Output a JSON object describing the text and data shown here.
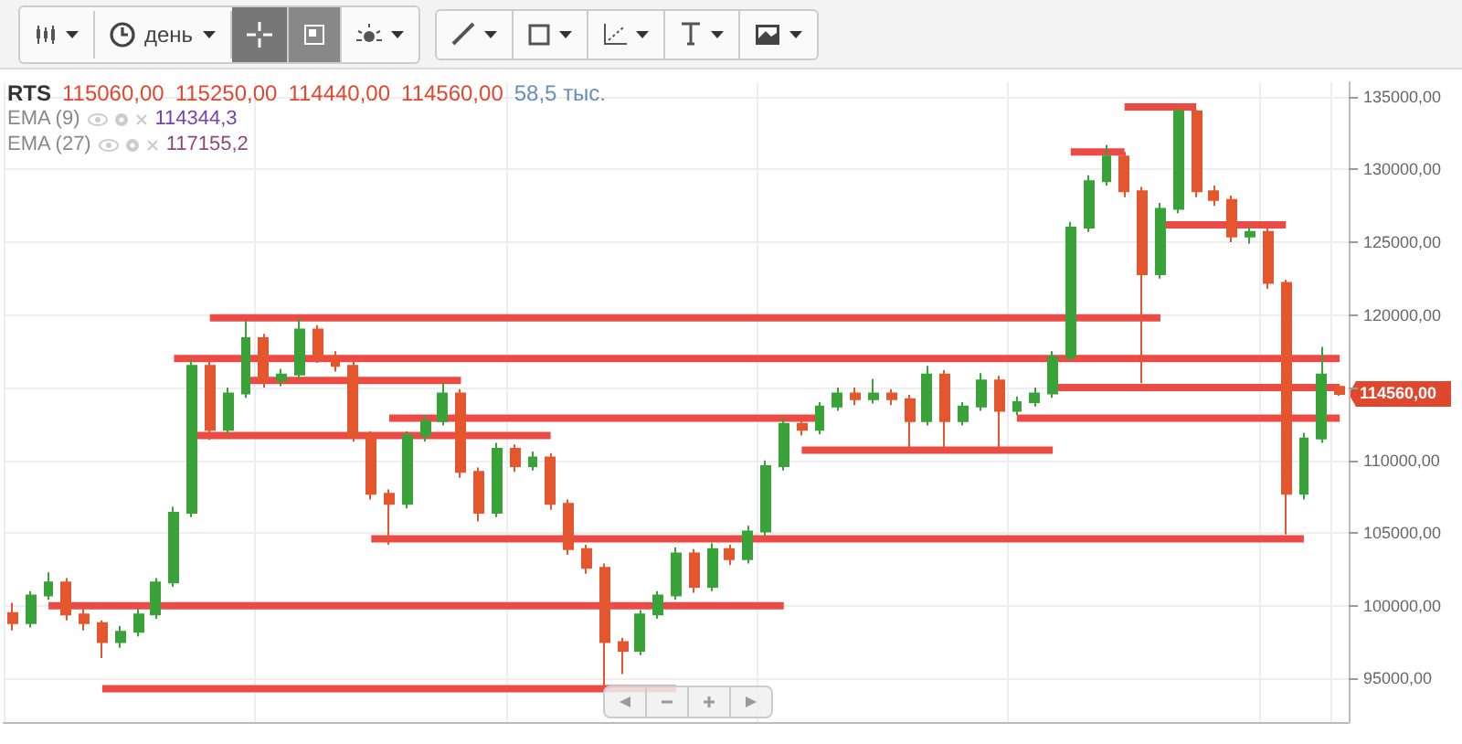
{
  "chart_data": {
    "type": "candlestick",
    "categories": [
      null,
      null,
      null,
      null,
      null,
      null,
      null,
      null,
      null,
      null,
      null,
      null,
      null,
      null,
      null,
      null,
      null,
      null,
      null,
      null,
      null,
      null,
      null,
      null,
      null,
      null,
      null,
      null,
      null,
      null,
      null,
      null,
      null,
      null,
      null,
      null,
      null,
      null,
      null,
      null,
      null,
      null,
      null,
      null,
      null,
      null,
      null,
      null,
      null,
      null,
      null,
      null,
      null,
      null,
      null,
      null,
      null,
      null,
      null,
      null,
      null,
      null,
      null,
      null,
      null,
      null,
      null,
      null,
      null,
      null,
      null,
      null,
      null,
      null,
      null
    ],
    "ohlc": [
      [
        99500,
        100200,
        98300,
        98800
      ],
      [
        98800,
        101000,
        98500,
        100700
      ],
      [
        100700,
        102300,
        100400,
        101600
      ],
      [
        101600,
        101900,
        99000,
        99400
      ],
      [
        99400,
        99800,
        98300,
        98800
      ],
      [
        98800,
        99000,
        96400,
        97500
      ],
      [
        97500,
        98600,
        97100,
        98200
      ],
      [
        98200,
        99800,
        97900,
        99400
      ],
      [
        99400,
        101900,
        99100,
        101600
      ],
      [
        101600,
        106800,
        101300,
        106400
      ],
      [
        106400,
        116900,
        106100,
        116500
      ],
      [
        116500,
        116800,
        111400,
        112100
      ],
      [
        112100,
        115000,
        111800,
        114600
      ],
      [
        114600,
        119600,
        114300,
        118400
      ],
      [
        118400,
        118700,
        115000,
        115500
      ],
      [
        115500,
        116300,
        115100,
        115900
      ],
      [
        115900,
        119800,
        115600,
        119000
      ],
      [
        119000,
        119300,
        116700,
        117100
      ],
      [
        117100,
        117500,
        116100,
        116500
      ],
      [
        116500,
        116800,
        111300,
        111700
      ],
      [
        111700,
        112000,
        107300,
        107700
      ],
      [
        107700,
        108000,
        104200,
        107000
      ],
      [
        107000,
        112000,
        106700,
        111700
      ],
      [
        111700,
        113100,
        111300,
        112700
      ],
      [
        112700,
        115300,
        112400,
        114600
      ],
      [
        114600,
        114900,
        108800,
        109200
      ],
      [
        109200,
        109500,
        105800,
        106400
      ],
      [
        106400,
        111200,
        106100,
        110800
      ],
      [
        110800,
        111100,
        109200,
        109600
      ],
      [
        109600,
        110600,
        109300,
        110200
      ],
      [
        110200,
        110500,
        106600,
        107000
      ],
      [
        107000,
        107300,
        103500,
        103900
      ],
      [
        103900,
        104200,
        102200,
        102600
      ],
      [
        102600,
        102900,
        94400,
        97500
      ],
      [
        97500,
        97800,
        95300,
        96900
      ],
      [
        96900,
        99700,
        96600,
        99400
      ],
      [
        99400,
        101000,
        99100,
        100700
      ],
      [
        100700,
        104000,
        100400,
        103600
      ],
      [
        103600,
        103900,
        100900,
        101300
      ],
      [
        101300,
        104300,
        101000,
        103900
      ],
      [
        103900,
        104200,
        102800,
        103200
      ],
      [
        103200,
        105500,
        102900,
        105100
      ],
      [
        105100,
        110000,
        104800,
        109600
      ],
      [
        109600,
        112900,
        109300,
        112500
      ],
      [
        112500,
        112800,
        111700,
        112100
      ],
      [
        112100,
        114000,
        111800,
        113700
      ],
      [
        113700,
        115000,
        113400,
        114600
      ],
      [
        114600,
        115000,
        113800,
        114200
      ],
      [
        114200,
        115600,
        113900,
        114600
      ],
      [
        114600,
        114900,
        113800,
        114200
      ],
      [
        114200,
        114500,
        110800,
        112700
      ],
      [
        112700,
        116500,
        112400,
        115900
      ],
      [
        115900,
        116200,
        110900,
        112700
      ],
      [
        112700,
        114000,
        112400,
        113700
      ],
      [
        113700,
        116000,
        113400,
        115500
      ],
      [
        115500,
        115800,
        110700,
        113400
      ],
      [
        113400,
        114400,
        113100,
        114000
      ],
      [
        114000,
        115000,
        113700,
        114600
      ],
      [
        114600,
        117500,
        114300,
        117100
      ],
      [
        117100,
        126400,
        116800,
        126000
      ],
      [
        126000,
        129600,
        125700,
        129200
      ],
      [
        129200,
        131700,
        128900,
        130900
      ],
      [
        130900,
        131200,
        128100,
        128500
      ],
      [
        128500,
        128800,
        115300,
        122800
      ],
      [
        122800,
        127700,
        122500,
        127300
      ],
      [
        127300,
        134200,
        127000,
        134000
      ],
      [
        134000,
        134100,
        128100,
        128500
      ],
      [
        128500,
        128900,
        127500,
        127900
      ],
      [
        127900,
        128200,
        125000,
        125400
      ],
      [
        125400,
        126100,
        124900,
        125700
      ],
      [
        125700,
        126000,
        121800,
        122200
      ],
      [
        122200,
        122400,
        104900,
        107700
      ],
      [
        107700,
        111900,
        107300,
        111500
      ],
      [
        111500,
        117800,
        111200,
        115900
      ],
      [
        115060,
        115250,
        114440,
        114560
      ]
    ],
    "colors": [
      "#e4572e",
      "#39a33a",
      "#39a33a",
      "#e4572e",
      "#e4572e",
      "#e4572e",
      "#39a33a",
      "#39a33a",
      "#39a33a",
      "#39a33a",
      "#39a33a",
      "#e4572e",
      "#39a33a",
      "#39a33a",
      "#e4572e",
      "#39a33a",
      "#39a33a",
      "#e4572e",
      "#e4572e",
      "#e4572e",
      "#e4572e",
      "#e4572e",
      "#39a33a",
      "#39a33a",
      "#39a33a",
      "#e4572e",
      "#e4572e",
      "#39a33a",
      "#e4572e",
      "#39a33a",
      "#e4572e",
      "#e4572e",
      "#e4572e",
      "#e4572e",
      "#e4572e",
      "#39a33a",
      "#39a33a",
      "#39a33a",
      "#e4572e",
      "#39a33a",
      "#e4572e",
      "#39a33a",
      "#39a33a",
      "#39a33a",
      "#e4572e",
      "#39a33a",
      "#39a33a",
      "#e4572e",
      "#39a33a",
      "#e4572e",
      "#e4572e",
      "#39a33a",
      "#e4572e",
      "#39a33a",
      "#39a33a",
      "#e4572e",
      "#39a33a",
      "#39a33a",
      "#39a33a",
      "#39a33a",
      "#39a33a",
      "#39a33a",
      "#e4572e",
      "#e4572e",
      "#39a33a",
      "#39a33a",
      "#e4572e",
      "#e4572e",
      "#e4572e",
      "#39a33a",
      "#e4572e",
      "#e4572e",
      "#39a33a",
      "#39a33a",
      "#e4572e"
    ],
    "series": [
      {
        "type": "line",
        "color": "#ec4a45",
        "values": [
          null,
          null,
          null,
          null,
          null,
          null,
          null,
          null,
          null,
          null,
          null,
          119800,
          119800,
          119800,
          119800,
          119800,
          119800,
          119800,
          119800,
          119800,
          119800,
          119800,
          119800,
          119800,
          119800,
          119800,
          119800,
          119800,
          119800,
          119800,
          119800,
          119800,
          119800,
          119800,
          119800,
          119800,
          119800,
          119800,
          119800,
          119800,
          119800,
          119800,
          119800,
          119800,
          119800,
          119800,
          119800,
          119800,
          119800,
          119800,
          119800,
          119800,
          119800,
          119800,
          119800,
          119800,
          119800,
          119800,
          119800,
          119800,
          119800,
          119800,
          119800,
          119800,
          119800,
          null,
          null,
          null,
          null,
          null,
          null,
          null,
          null,
          null,
          null
        ]
      },
      {
        "type": "line",
        "color": "#ec4a45",
        "values": [
          null,
          null,
          null,
          null,
          null,
          null,
          null,
          null,
          null,
          117000,
          117000,
          117000,
          117000,
          117000,
          117000,
          117000,
          117000,
          117000,
          117000,
          117000,
          117000,
          117000,
          117000,
          117000,
          117000,
          117000,
          117000,
          117000,
          117000,
          117000,
          117000,
          117000,
          117000,
          117000,
          117000,
          117000,
          117000,
          117000,
          117000,
          117000,
          117000,
          117000,
          117000,
          117000,
          117000,
          117000,
          117000,
          117000,
          117000,
          117000,
          117000,
          117000,
          117000,
          117000,
          117000,
          117000,
          117000,
          117000,
          117000,
          117000,
          117000,
          117000,
          117000,
          117000,
          117000,
          117000,
          117000,
          117000,
          117000,
          117000,
          117000,
          117000,
          117000,
          117000,
          117000
        ]
      },
      {
        "type": "line",
        "color": "#ec4a45",
        "values": [
          null,
          null,
          null,
          null,
          null,
          null,
          null,
          null,
          null,
          null,
          null,
          null,
          null,
          115500,
          115500,
          115500,
          115500,
          115500,
          115500,
          115500,
          115500,
          115500,
          115500,
          115500,
          115500,
          115500,
          null,
          null,
          null,
          null,
          null,
          null,
          null,
          null,
          null,
          null,
          null,
          null,
          null,
          null,
          null,
          null,
          null,
          null,
          null,
          null,
          null,
          null,
          null,
          null,
          null,
          null,
          null,
          null,
          null,
          null,
          null,
          null,
          null,
          null,
          null,
          null,
          null,
          null,
          null,
          null,
          null,
          null,
          null,
          null,
          null,
          null,
          null,
          null,
          null
        ]
      },
      {
        "type": "line",
        "color": "#ec4a45",
        "values": [
          null,
          null,
          null,
          null,
          null,
          null,
          null,
          null,
          null,
          null,
          null,
          null,
          null,
          null,
          null,
          null,
          null,
          null,
          null,
          null,
          null,
          null,
          null,
          null,
          null,
          null,
          null,
          null,
          null,
          null,
          null,
          null,
          null,
          null,
          null,
          null,
          null,
          null,
          null,
          null,
          null,
          null,
          null,
          null,
          null,
          null,
          null,
          null,
          null,
          null,
          null,
          null,
          null,
          null,
          null,
          null,
          null,
          null,
          115000,
          115000,
          115000,
          115000,
          115000,
          115000,
          115000,
          115000,
          115000,
          115000,
          115000,
          115000,
          115000,
          115000,
          115000,
          115000,
          115000
        ]
      },
      {
        "type": "line",
        "color": "#ec4a45",
        "values": [
          null,
          null,
          null,
          null,
          null,
          null,
          null,
          null,
          null,
          null,
          null,
          null,
          null,
          null,
          null,
          null,
          null,
          null,
          null,
          null,
          null,
          112900,
          112900,
          112900,
          112900,
          112900,
          112900,
          112900,
          112900,
          112900,
          112900,
          112900,
          112900,
          112900,
          112900,
          112900,
          112900,
          112900,
          112900,
          112900,
          112900,
          112900,
          112900,
          112900,
          112900,
          112900,
          null,
          null,
          null,
          null,
          null,
          null,
          null,
          null,
          null,
          null,
          null,
          null,
          null,
          null,
          null,
          null,
          null,
          null,
          null,
          null,
          null,
          null,
          null,
          null,
          null,
          null,
          null,
          null,
          null
        ]
      },
      {
        "type": "line",
        "color": "#ec4a45",
        "values": [
          null,
          null,
          null,
          null,
          null,
          null,
          null,
          null,
          null,
          null,
          null,
          null,
          null,
          null,
          null,
          null,
          null,
          null,
          null,
          null,
          null,
          null,
          null,
          null,
          null,
          null,
          null,
          null,
          null,
          null,
          null,
          null,
          null,
          null,
          null,
          null,
          null,
          null,
          null,
          null,
          null,
          null,
          null,
          null,
          null,
          null,
          null,
          null,
          null,
          null,
          null,
          null,
          null,
          null,
          null,
          null,
          112900,
          112900,
          112900,
          112900,
          112900,
          112900,
          112900,
          112900,
          112900,
          112900,
          112900,
          112900,
          112900,
          112900,
          112900,
          112900,
          112900,
          112900,
          112900
        ]
      },
      {
        "type": "line",
        "color": "#ec4a45",
        "values": [
          null,
          null,
          null,
          null,
          null,
          null,
          null,
          null,
          null,
          null,
          111700,
          111700,
          111700,
          111700,
          111700,
          111700,
          111700,
          111700,
          111700,
          111700,
          111700,
          111700,
          111700,
          111700,
          111700,
          111700,
          111700,
          111700,
          111700,
          111700,
          111700,
          null,
          null,
          null,
          null,
          null,
          null,
          null,
          null,
          null,
          null,
          null,
          null,
          null,
          null,
          null,
          null,
          null,
          null,
          null,
          null,
          null,
          null,
          null,
          null,
          null,
          null,
          null,
          null,
          null,
          null,
          null,
          null,
          null,
          null,
          null,
          null,
          null,
          null,
          null,
          null,
          null,
          null,
          null,
          null
        ]
      },
      {
        "type": "line",
        "color": "#ec4a45",
        "values": [
          null,
          null,
          null,
          null,
          null,
          null,
          null,
          null,
          null,
          null,
          null,
          null,
          null,
          null,
          null,
          null,
          null,
          null,
          null,
          null,
          null,
          null,
          null,
          null,
          null,
          null,
          null,
          null,
          null,
          null,
          null,
          null,
          null,
          null,
          null,
          null,
          null,
          null,
          null,
          null,
          null,
          null,
          null,
          null,
          110700,
          110700,
          110700,
          110700,
          110700,
          110700,
          110700,
          110700,
          110700,
          110700,
          110700,
          110700,
          110700,
          110700,
          110700,
          null,
          null,
          null,
          null,
          null,
          null,
          null,
          null,
          null,
          null,
          null,
          null,
          null,
          null,
          null,
          null
        ]
      },
      {
        "type": "line",
        "color": "#ec4a45",
        "values": [
          null,
          null,
          null,
          null,
          null,
          null,
          null,
          null,
          null,
          null,
          null,
          null,
          null,
          null,
          null,
          null,
          null,
          null,
          null,
          null,
          104600,
          104600,
          104600,
          104600,
          104600,
          104600,
          104600,
          104600,
          104600,
          104600,
          104600,
          104600,
          104600,
          104600,
          104600,
          104600,
          104600,
          104600,
          104600,
          104600,
          104600,
          104600,
          104600,
          104600,
          104600,
          104600,
          104600,
          104600,
          104600,
          104600,
          104600,
          104600,
          104600,
          104600,
          104600,
          104600,
          104600,
          104600,
          104600,
          104600,
          104600,
          104600,
          104600,
          104600,
          104600,
          104600,
          104600,
          104600,
          104600,
          104600,
          104600,
          104600,
          104600,
          null,
          null
        ]
      },
      {
        "type": "line",
        "color": "#ec4a45",
        "values": [
          null,
          null,
          100000,
          100000,
          100000,
          100000,
          100000,
          100000,
          100000,
          100000,
          100000,
          100000,
          100000,
          100000,
          100000,
          100000,
          100000,
          100000,
          100000,
          100000,
          100000,
          100000,
          100000,
          100000,
          100000,
          100000,
          100000,
          100000,
          100000,
          100000,
          100000,
          100000,
          100000,
          100000,
          100000,
          100000,
          100000,
          100000,
          100000,
          100000,
          100000,
          100000,
          100000,
          100000,
          null,
          null,
          null,
          null,
          null,
          null,
          null,
          null,
          null,
          null,
          null,
          null,
          null,
          null,
          null,
          null,
          null,
          null,
          null,
          null,
          null,
          null,
          null,
          null,
          null,
          null,
          null,
          null,
          null,
          null,
          null
        ]
      },
      {
        "type": "line",
        "color": "#ec4a45",
        "values": [
          null,
          null,
          null,
          null,
          null,
          94300,
          94300,
          94300,
          94300,
          94300,
          94300,
          94300,
          94300,
          94300,
          94300,
          94300,
          94300,
          94300,
          94300,
          94300,
          94300,
          94300,
          94300,
          94300,
          94300,
          94300,
          94300,
          94300,
          94300,
          94300,
          94300,
          94300,
          94300,
          94300,
          94300,
          94300,
          94300,
          94300,
          null,
          null,
          null,
          null,
          null,
          null,
          null,
          null,
          null,
          null,
          null,
          null,
          null,
          null,
          null,
          null,
          null,
          null,
          null,
          null,
          null,
          null,
          null,
          null,
          null,
          null,
          null,
          null,
          null,
          null,
          null,
          null,
          null,
          null,
          null,
          null,
          null
        ]
      },
      {
        "type": "line",
        "color": "#ec4a45",
        "values": [
          null,
          null,
          null,
          null,
          null,
          null,
          null,
          null,
          null,
          null,
          null,
          null,
          null,
          null,
          null,
          null,
          null,
          null,
          null,
          null,
          null,
          null,
          null,
          null,
          null,
          null,
          null,
          null,
          null,
          null,
          null,
          null,
          null,
          null,
          null,
          null,
          null,
          null,
          null,
          null,
          null,
          null,
          null,
          null,
          null,
          null,
          null,
          null,
          null,
          null,
          null,
          null,
          null,
          null,
          null,
          null,
          null,
          null,
          null,
          null,
          null,
          null,
          134300,
          134300,
          134300,
          134300,
          134300,
          null,
          null,
          null,
          null,
          null,
          null,
          null,
          null
        ]
      },
      {
        "type": "line",
        "color": "#ec4a45",
        "values": [
          null,
          null,
          null,
          null,
          null,
          null,
          null,
          null,
          null,
          null,
          null,
          null,
          null,
          null,
          null,
          null,
          null,
          null,
          null,
          null,
          null,
          null,
          null,
          null,
          null,
          null,
          null,
          null,
          null,
          null,
          null,
          null,
          null,
          null,
          null,
          null,
          null,
          null,
          null,
          null,
          null,
          null,
          null,
          null,
          null,
          null,
          null,
          null,
          null,
          null,
          null,
          null,
          null,
          null,
          null,
          null,
          null,
          null,
          null,
          131200,
          131200,
          131200,
          131200,
          null,
          null,
          null,
          null,
          null,
          null,
          null,
          null,
          null,
          null,
          null,
          null
        ]
      },
      {
        "type": "line",
        "color": "#ec4a45",
        "values": [
          null,
          null,
          null,
          null,
          null,
          null,
          null,
          null,
          null,
          null,
          null,
          null,
          null,
          null,
          null,
          null,
          null,
          null,
          null,
          null,
          null,
          null,
          null,
          null,
          null,
          null,
          null,
          null,
          null,
          null,
          null,
          null,
          null,
          null,
          null,
          null,
          null,
          null,
          null,
          null,
          null,
          null,
          null,
          null,
          null,
          null,
          null,
          null,
          null,
          null,
          null,
          null,
          null,
          null,
          null,
          null,
          null,
          null,
          null,
          null,
          null,
          null,
          null,
          null,
          126200,
          126200,
          126200,
          126200,
          126200,
          126200,
          126200,
          126200,
          null,
          null,
          null
        ]
      }
    ],
    "ylim": [
      92000,
      136000
    ],
    "yticks": [
      {
        "value": 95000,
        "label": "95000,00"
      },
      {
        "value": 100000,
        "label": "100000,00"
      },
      {
        "value": 105000,
        "label": "105000,00"
      },
      {
        "value": 110000,
        "label": "110000,00"
      },
      {
        "value": 115000,
        "label": null
      },
      {
        "value": 120000,
        "label": "120000,00"
      },
      {
        "value": 125000,
        "label": "125000,00"
      },
      {
        "value": 130000,
        "label": "130000,00"
      },
      {
        "value": 135000,
        "label": "135000,00"
      }
    ],
    "tick_labels": "y",
    "grid": true,
    "marker": "none",
    "line_style": "solid",
    "annotations": [
      "RTS",
      "115060,00",
      "115250,00",
      "114440,00",
      "114560,00",
      "58,5 тыс.",
      "EMA (9)",
      "114344,3",
      "EMA (27)",
      "117155,2",
      "день",
      "114560,00"
    ]
  }
}
